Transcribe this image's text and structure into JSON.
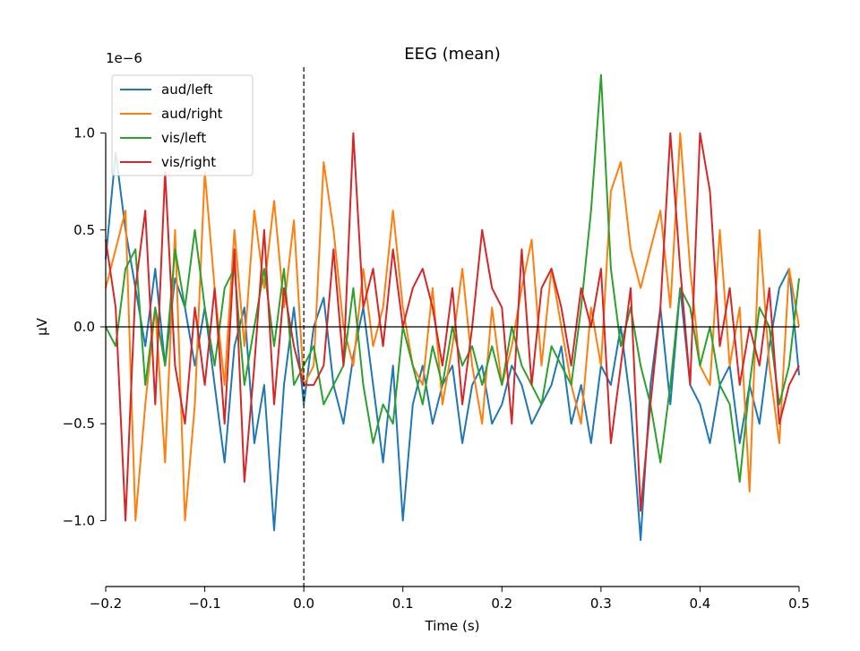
{
  "chart_data": {
    "type": "line",
    "title": "EEG (mean)",
    "xlabel": "Time (s)",
    "ylabel": "µV",
    "offset_label": "1e−6",
    "xlim": [
      -0.2,
      0.5
    ],
    "ylim": [
      -1.34,
      1.34
    ],
    "xticks": [
      -0.2,
      -0.1,
      0.0,
      0.1,
      0.2,
      0.3,
      0.4,
      0.5
    ],
    "xtick_labels": [
      "−0.2",
      "−0.1",
      "0.0",
      "0.1",
      "0.2",
      "0.3",
      "0.4",
      "0.5"
    ],
    "yticks": [
      -1.0,
      -0.5,
      0.0,
      0.5,
      1.0
    ],
    "ytick_labels": [
      "−1.0",
      "−0.5",
      "0.0",
      "0.5",
      "1.0"
    ],
    "vline_x": 0.0,
    "hline_y": 0.0,
    "grid": false,
    "legend_position": "top-left",
    "series": [
      {
        "name": "aud/left",
        "color": "#1f77b4",
        "x": [
          -0.2,
          -0.19,
          -0.18,
          -0.17,
          -0.16,
          -0.15,
          -0.14,
          -0.13,
          -0.12,
          -0.11,
          -0.1,
          -0.09,
          -0.08,
          -0.07,
          -0.06,
          -0.05,
          -0.04,
          -0.03,
          -0.02,
          -0.01,
          0.0,
          0.01,
          0.02,
          0.03,
          0.04,
          0.05,
          0.06,
          0.07,
          0.08,
          0.09,
          0.1,
          0.11,
          0.12,
          0.13,
          0.14,
          0.15,
          0.16,
          0.17,
          0.18,
          0.19,
          0.2,
          0.21,
          0.22,
          0.23,
          0.24,
          0.25,
          0.26,
          0.27,
          0.28,
          0.29,
          0.3,
          0.31,
          0.32,
          0.33,
          0.34,
          0.35,
          0.36,
          0.37,
          0.38,
          0.39,
          0.4,
          0.41,
          0.42,
          0.43,
          0.44,
          0.45,
          0.46,
          0.47,
          0.48,
          0.49,
          0.5
        ],
        "values": [
          0.35,
          0.9,
          0.5,
          0.2,
          -0.1,
          0.3,
          -0.2,
          0.25,
          0.1,
          -0.2,
          0.1,
          -0.3,
          -0.7,
          -0.1,
          0.1,
          -0.6,
          -0.3,
          -1.05,
          -0.3,
          0.1,
          -0.4,
          0.0,
          0.15,
          -0.3,
          -0.5,
          -0.15,
          0.1,
          -0.3,
          -0.7,
          -0.2,
          -1.0,
          -0.4,
          -0.2,
          -0.5,
          -0.3,
          -0.2,
          -0.6,
          -0.3,
          -0.2,
          -0.5,
          -0.4,
          -0.2,
          -0.3,
          -0.5,
          -0.4,
          -0.3,
          -0.1,
          -0.5,
          -0.3,
          -0.6,
          -0.2,
          -0.3,
          0.0,
          -0.4,
          -1.1,
          -0.3,
          0.1,
          -0.4,
          0.2,
          -0.3,
          -0.4,
          -0.6,
          -0.3,
          -0.2,
          -0.6,
          -0.3,
          -0.5,
          -0.1,
          0.2,
          0.3,
          -0.25
        ]
      },
      {
        "name": "aud/right",
        "color": "#ff7f0e",
        "x": [
          -0.2,
          -0.19,
          -0.18,
          -0.17,
          -0.16,
          -0.15,
          -0.14,
          -0.13,
          -0.12,
          -0.11,
          -0.1,
          -0.09,
          -0.08,
          -0.07,
          -0.06,
          -0.05,
          -0.04,
          -0.03,
          -0.02,
          -0.01,
          0.0,
          0.01,
          0.02,
          0.03,
          0.04,
          0.05,
          0.06,
          0.07,
          0.08,
          0.09,
          0.1,
          0.11,
          0.12,
          0.13,
          0.14,
          0.15,
          0.16,
          0.17,
          0.18,
          0.19,
          0.2,
          0.21,
          0.22,
          0.23,
          0.24,
          0.25,
          0.26,
          0.27,
          0.28,
          0.29,
          0.3,
          0.31,
          0.32,
          0.33,
          0.34,
          0.35,
          0.36,
          0.37,
          0.38,
          0.39,
          0.4,
          0.41,
          0.42,
          0.43,
          0.44,
          0.45,
          0.46,
          0.47,
          0.48,
          0.49,
          0.5
        ],
        "values": [
          0.2,
          0.4,
          0.6,
          -1.0,
          -0.4,
          0.1,
          -0.7,
          0.5,
          -1.0,
          -0.4,
          0.8,
          0.2,
          -0.3,
          0.5,
          -0.1,
          0.6,
          0.2,
          0.65,
          0.1,
          0.55,
          -0.3,
          -0.2,
          0.85,
          0.5,
          0.0,
          -0.2,
          0.3,
          -0.1,
          0.1,
          0.6,
          0.1,
          -0.2,
          -0.3,
          0.2,
          -0.4,
          -0.1,
          0.3,
          -0.2,
          -0.5,
          0.1,
          -0.3,
          -0.1,
          0.2,
          0.45,
          -0.2,
          0.3,
          0.0,
          -0.3,
          -0.5,
          0.1,
          -0.2,
          0.7,
          0.85,
          0.4,
          0.2,
          0.4,
          0.6,
          0.1,
          1.0,
          0.3,
          -0.2,
          -0.3,
          0.5,
          -0.2,
          0.1,
          -0.85,
          0.5,
          -0.2,
          -0.6,
          0.3,
          0.0
        ]
      },
      {
        "name": "vis/left",
        "color": "#2ca02c",
        "x": [
          -0.2,
          -0.19,
          -0.18,
          -0.17,
          -0.16,
          -0.15,
          -0.14,
          -0.13,
          -0.12,
          -0.11,
          -0.1,
          -0.09,
          -0.08,
          -0.07,
          -0.06,
          -0.05,
          -0.04,
          -0.03,
          -0.02,
          -0.01,
          0.0,
          0.01,
          0.02,
          0.03,
          0.04,
          0.05,
          0.06,
          0.07,
          0.08,
          0.09,
          0.1,
          0.11,
          0.12,
          0.13,
          0.14,
          0.15,
          0.16,
          0.17,
          0.18,
          0.19,
          0.2,
          0.21,
          0.22,
          0.23,
          0.24,
          0.25,
          0.26,
          0.27,
          0.28,
          0.29,
          0.3,
          0.31,
          0.32,
          0.33,
          0.34,
          0.35,
          0.36,
          0.37,
          0.38,
          0.39,
          0.4,
          0.41,
          0.42,
          0.43,
          0.44,
          0.45,
          0.46,
          0.47,
          0.48,
          0.49,
          0.5
        ],
        "values": [
          0.0,
          -0.1,
          0.3,
          0.4,
          -0.3,
          0.1,
          -0.2,
          0.4,
          0.1,
          0.5,
          0.1,
          -0.2,
          0.2,
          0.3,
          -0.3,
          0.0,
          0.3,
          -0.1,
          0.3,
          -0.3,
          -0.2,
          -0.1,
          -0.4,
          -0.3,
          -0.2,
          0.2,
          -0.3,
          -0.6,
          -0.4,
          -0.5,
          0.0,
          -0.2,
          -0.4,
          -0.1,
          -0.3,
          0.0,
          -0.2,
          -0.1,
          -0.3,
          -0.1,
          -0.3,
          0.0,
          -0.2,
          -0.3,
          -0.4,
          -0.1,
          -0.2,
          -0.3,
          0.1,
          0.6,
          1.3,
          0.3,
          -0.1,
          0.1,
          -0.2,
          -0.4,
          -0.7,
          -0.3,
          0.2,
          0.1,
          -0.2,
          0.0,
          -0.3,
          -0.4,
          -0.8,
          -0.3,
          0.1,
          0.0,
          -0.4,
          -0.2,
          0.25
        ]
      },
      {
        "name": "vis/right",
        "color": "#d62728",
        "x": [
          -0.2,
          -0.19,
          -0.18,
          -0.17,
          -0.16,
          -0.15,
          -0.14,
          -0.13,
          -0.12,
          -0.11,
          -0.1,
          -0.09,
          -0.08,
          -0.07,
          -0.06,
          -0.05,
          -0.04,
          -0.03,
          -0.02,
          -0.01,
          0.0,
          0.01,
          0.02,
          0.03,
          0.04,
          0.05,
          0.06,
          0.07,
          0.08,
          0.09,
          0.1,
          0.11,
          0.12,
          0.13,
          0.14,
          0.15,
          0.16,
          0.17,
          0.18,
          0.19,
          0.2,
          0.21,
          0.22,
          0.23,
          0.24,
          0.25,
          0.26,
          0.27,
          0.28,
          0.29,
          0.3,
          0.31,
          0.32,
          0.33,
          0.34,
          0.35,
          0.36,
          0.37,
          0.38,
          0.39,
          0.4,
          0.41,
          0.42,
          0.43,
          0.44,
          0.45,
          0.46,
          0.47,
          0.48,
          0.49,
          0.5
        ],
        "values": [
          0.45,
          0.1,
          -1.0,
          0.2,
          0.6,
          -0.4,
          0.8,
          -0.2,
          -0.5,
          0.1,
          -0.3,
          0.2,
          -0.5,
          0.4,
          -0.8,
          -0.2,
          0.5,
          -0.4,
          0.2,
          -0.1,
          -0.3,
          -0.3,
          -0.2,
          0.4,
          -0.2,
          1.0,
          0.1,
          0.3,
          -0.1,
          0.4,
          0.0,
          0.2,
          0.3,
          0.1,
          -0.2,
          0.2,
          -0.4,
          0.0,
          0.5,
          0.2,
          0.1,
          -0.5,
          0.4,
          -0.3,
          0.2,
          0.3,
          0.1,
          -0.2,
          0.2,
          0.0,
          0.3,
          -0.6,
          -0.2,
          0.2,
          -0.95,
          -0.4,
          0.1,
          1.0,
          0.3,
          -0.3,
          1.0,
          0.7,
          -0.1,
          0.2,
          -0.3,
          0.0,
          -0.2,
          0.2,
          -0.5,
          -0.3,
          -0.2
        ]
      }
    ]
  }
}
